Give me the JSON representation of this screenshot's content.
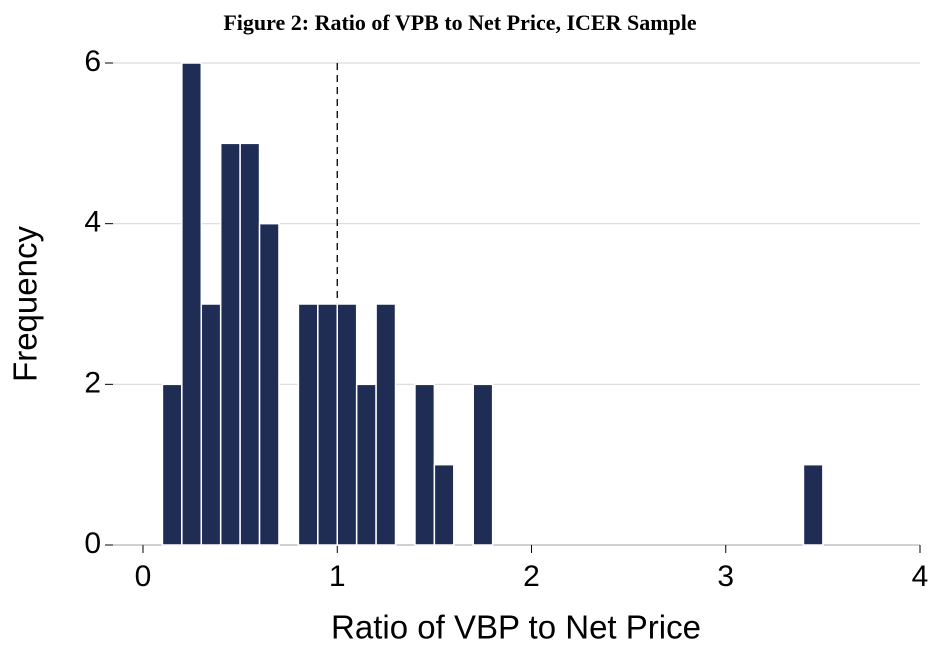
{
  "chart_data": {
    "type": "histogram",
    "title": "Figure 2: Ratio of VPB to Net Price, ICER Sample",
    "x_label": "Ratio of VBP to Net Price",
    "y_label": "Frequency",
    "bins": [
      0.1,
      0.2,
      0.3,
      0.4,
      0.5,
      0.6,
      0.7,
      0.8,
      0.9,
      1.0,
      1.1,
      1.2,
      1.3,
      1.4,
      1.5,
      1.6,
      1.7,
      1.8,
      1.9,
      2.0,
      2.1,
      2.2,
      2.3,
      2.4,
      2.5,
      2.6,
      2.7,
      2.8,
      2.9,
      3.0,
      3.1,
      3.2,
      3.3,
      3.4,
      3.5
    ],
    "values": [
      2,
      6,
      3,
      5,
      5,
      4,
      0,
      3,
      3,
      3,
      2,
      3,
      0,
      2,
      1,
      0,
      2,
      0,
      0,
      0,
      0,
      0,
      0,
      0,
      0,
      0,
      0,
      0,
      0,
      0,
      0,
      0,
      0,
      1
    ],
    "color": "#1f2d55",
    "reference_line": {
      "x": 1
    },
    "xlim": [
      0,
      4
    ],
    "xticks": [
      0,
      1,
      2,
      3,
      4
    ],
    "ylim": [
      0,
      6
    ],
    "yticks": [
      0,
      2,
      4,
      6
    ],
    "grid": true
  }
}
